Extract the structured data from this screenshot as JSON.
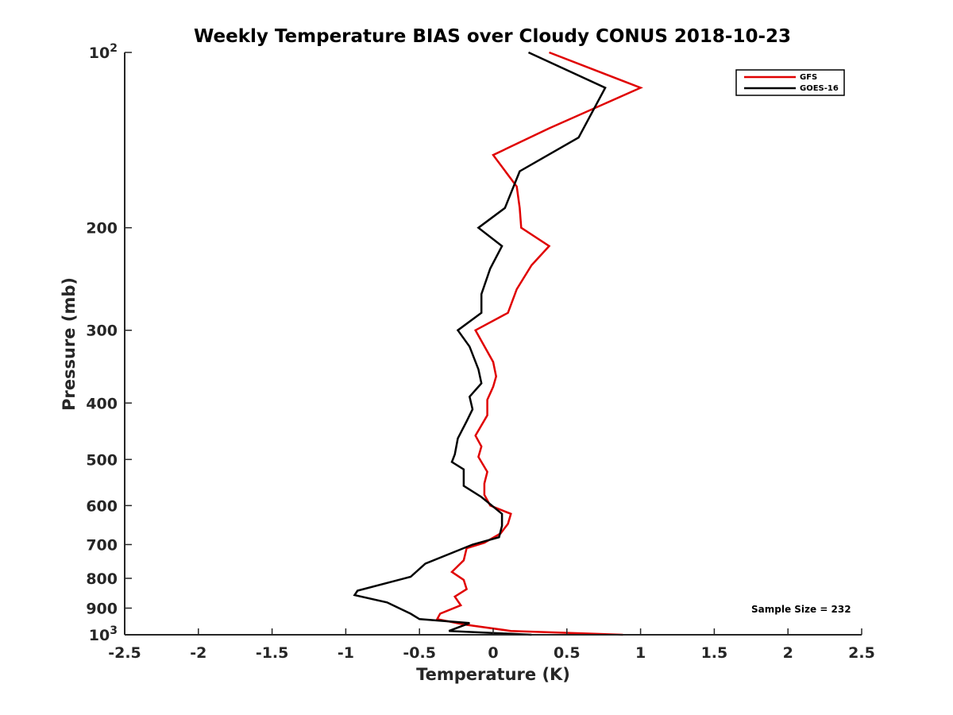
{
  "chart_data": {
    "type": "line",
    "title": "Weekly Temperature BIAS over Cloudy CONUS 2018-10-23",
    "xlabel": "Temperature (K)",
    "ylabel": "Pressure (mb)",
    "xlim": [
      -2.5,
      2.5
    ],
    "ylim": [
      100,
      1000
    ],
    "y_scale": "log",
    "y_reversed": true,
    "grid": false,
    "legend_position": "top-right",
    "x_ticks": [
      {
        "value": -2.5,
        "label": "-2.5"
      },
      {
        "value": -2,
        "label": "-2"
      },
      {
        "value": -1.5,
        "label": "-1.5"
      },
      {
        "value": -1,
        "label": "-1"
      },
      {
        "value": -0.5,
        "label": "-0.5"
      },
      {
        "value": 0,
        "label": "0"
      },
      {
        "value": 0.5,
        "label": "0.5"
      },
      {
        "value": 1,
        "label": "1"
      },
      {
        "value": 1.5,
        "label": "1.5"
      },
      {
        "value": 2,
        "label": "2"
      },
      {
        "value": 2.5,
        "label": "2.5"
      }
    ],
    "y_ticks": [
      {
        "value": 100,
        "base": "10",
        "exp": "2"
      },
      {
        "value": 200,
        "label": "200"
      },
      {
        "value": 300,
        "label": "300"
      },
      {
        "value": 400,
        "label": "400"
      },
      {
        "value": 500,
        "label": "500"
      },
      {
        "value": 600,
        "label": "600"
      },
      {
        "value": 700,
        "label": "700"
      },
      {
        "value": 800,
        "label": "800"
      },
      {
        "value": 900,
        "label": "900"
      },
      {
        "value": 1000,
        "base": "10",
        "exp": "3"
      }
    ],
    "series": [
      {
        "name": "GFS",
        "color": "#e00000",
        "points": [
          [
            0.38,
            100
          ],
          [
            1.0,
            115
          ],
          [
            0.38,
            135
          ],
          [
            0.0,
            150
          ],
          [
            0.16,
            170
          ],
          [
            0.18,
            185
          ],
          [
            0.19,
            200
          ],
          [
            0.38,
            215
          ],
          [
            0.26,
            232
          ],
          [
            0.16,
            255
          ],
          [
            0.1,
            280
          ],
          [
            -0.12,
            300
          ],
          [
            0.0,
            340
          ],
          [
            0.02,
            360
          ],
          [
            0.0,
            375
          ],
          [
            -0.04,
            395
          ],
          [
            -0.04,
            420
          ],
          [
            -0.12,
            455
          ],
          [
            -0.08,
            475
          ],
          [
            -0.1,
            495
          ],
          [
            -0.04,
            525
          ],
          [
            -0.06,
            550
          ],
          [
            -0.06,
            575
          ],
          [
            -0.02,
            600
          ],
          [
            0.12,
            620
          ],
          [
            0.1,
            645
          ],
          [
            0.05,
            670
          ],
          [
            -0.06,
            695
          ],
          [
            -0.18,
            710
          ],
          [
            -0.2,
            745
          ],
          [
            -0.28,
            780
          ],
          [
            -0.2,
            805
          ],
          [
            -0.18,
            835
          ],
          [
            -0.26,
            860
          ],
          [
            -0.22,
            890
          ],
          [
            -0.36,
            920
          ],
          [
            -0.38,
            940
          ],
          [
            -0.2,
            960
          ],
          [
            0.12,
            985
          ],
          [
            0.88,
            1000
          ]
        ]
      },
      {
        "name": "GOES-16",
        "color": "#000000",
        "points": [
          [
            0.24,
            100
          ],
          [
            0.76,
            115
          ],
          [
            0.58,
            140
          ],
          [
            0.18,
            160
          ],
          [
            0.08,
            185
          ],
          [
            -0.1,
            200
          ],
          [
            0.06,
            215
          ],
          [
            -0.02,
            235
          ],
          [
            -0.08,
            260
          ],
          [
            -0.08,
            280
          ],
          [
            -0.24,
            300
          ],
          [
            -0.16,
            320
          ],
          [
            -0.1,
            350
          ],
          [
            -0.08,
            370
          ],
          [
            -0.16,
            390
          ],
          [
            -0.14,
            410
          ],
          [
            -0.18,
            430
          ],
          [
            -0.24,
            460
          ],
          [
            -0.26,
            490
          ],
          [
            -0.28,
            505
          ],
          [
            -0.2,
            520
          ],
          [
            -0.2,
            555
          ],
          [
            -0.08,
            580
          ],
          [
            0.06,
            620
          ],
          [
            0.06,
            650
          ],
          [
            0.04,
            680
          ],
          [
            -0.14,
            700
          ],
          [
            -0.46,
            755
          ],
          [
            -0.56,
            795
          ],
          [
            -0.92,
            840
          ],
          [
            -0.94,
            855
          ],
          [
            -0.72,
            880
          ],
          [
            -0.56,
            920
          ],
          [
            -0.5,
            940
          ],
          [
            -0.16,
            955
          ],
          [
            -0.3,
            985
          ],
          [
            0.26,
            1000
          ]
        ]
      }
    ],
    "annotations": [
      {
        "text": "Sample Size = 232"
      }
    ]
  }
}
